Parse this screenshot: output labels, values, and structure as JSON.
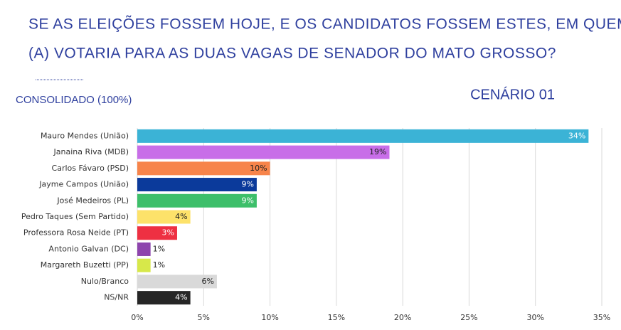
{
  "chart_data": {
    "type": "bar",
    "orientation": "horizontal",
    "title_lines": [
      "SE AS ELEIÇÕES FOSSEM HOJE, E OS CANDIDATOS FOSSEM ESTES, EM QUEM O SR.",
      "(A) VOTARIA PARA AS DUAS VAGAS DE SENADOR DO MATO GROSSO?"
    ],
    "subtitle": "CONSOLIDADO (100%)",
    "scenario": "CENÁRIO 01",
    "categories": [
      "Mauro Mendes (União)",
      "Janaina Riva (MDB)",
      "Carlos Fávaro (PSD)",
      "Jayme Campos (União)",
      "José Medeiros (PL)",
      "Pedro Taques (Sem Partido)",
      "Professora Rosa Neide (PT)",
      "Antonio Galvan (DC)",
      "Margareth Buzetti (PP)",
      "Nulo/Branco",
      "NS/NR"
    ],
    "values": [
      34,
      19,
      10,
      9,
      9,
      4,
      3,
      1,
      1,
      6,
      4
    ],
    "value_labels": [
      "34%",
      "19%",
      "10%",
      "9%",
      "9%",
      "4%",
      "3%",
      "1%",
      "1%",
      "6%",
      "4%"
    ],
    "colors": [
      "#3bb3d6",
      "#c86ee8",
      "#f7844a",
      "#0b3a9b",
      "#3dbf6a",
      "#fde26a",
      "#ee3042",
      "#8e44ad",
      "#d7e84a",
      "#d9d9d9",
      "#262626"
    ],
    "xlim": [
      0,
      35
    ],
    "xticks": [
      {
        "value": 0,
        "label": "0%"
      },
      {
        "value": 5,
        "label": "5%"
      },
      {
        "value": 10,
        "label": "10%"
      },
      {
        "value": 15,
        "label": "15%"
      },
      {
        "value": 20,
        "label": "20%"
      },
      {
        "value": 25,
        "label": "25%"
      },
      {
        "value": 30,
        "label": "30%"
      },
      {
        "value": 35,
        "label": "35%"
      }
    ],
    "grid": true
  }
}
